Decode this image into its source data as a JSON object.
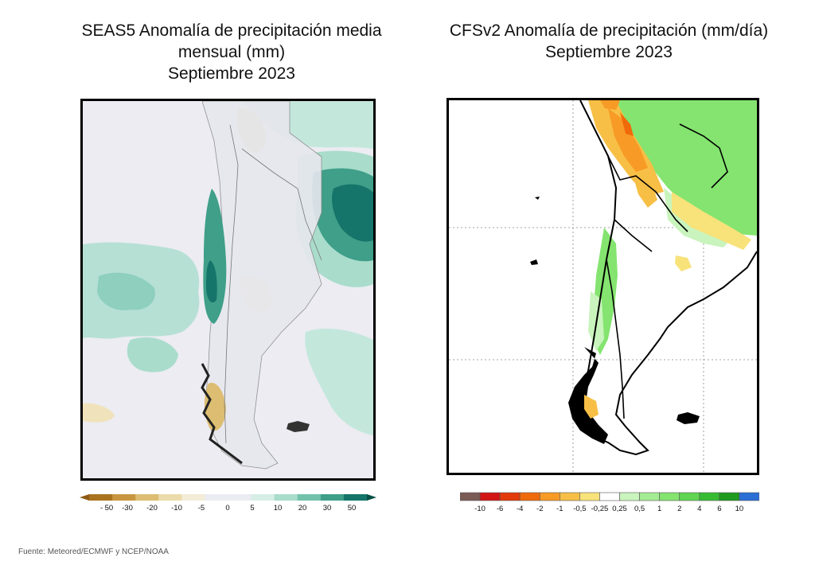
{
  "left_panel": {
    "title_lines": [
      "SEAS5 Anomalía de precipitación media",
      "mensual (mm)",
      "Septiembre 2023"
    ],
    "legend": {
      "colors": [
        "#8c5a14",
        "#a9731f",
        "#c8963e",
        "#dcbd72",
        "#ecdbaa",
        "#f3ecd6",
        "#ebebf2",
        "#ebebf2",
        "#d6eee6",
        "#a9dccb",
        "#72c2ab",
        "#3f9f89",
        "#15756a",
        "#044f44"
      ],
      "ticks": [
        "- 50",
        "-30",
        "-20",
        "-10",
        "-5",
        "0",
        "5",
        "10",
        "20",
        "30",
        "50"
      ]
    }
  },
  "right_panel": {
    "title_lines": [
      "CFSv2 Anomalía de precipitación (mm/día)",
      "Septiembre 2023"
    ],
    "legend": {
      "colors": [
        "#7a5a55",
        "#d21414",
        "#e23a0a",
        "#f06a0a",
        "#f79a26",
        "#f7bf45",
        "#f8e27a",
        "#ffffff",
        "#c9f4bd",
        "#a4ec93",
        "#84e46f",
        "#5fd552",
        "#38bb34",
        "#1e9a1e",
        "#2a6fd6"
      ],
      "ticks": [
        "-10",
        "-6",
        "-4",
        "-2",
        "-1",
        "-0,5",
        "-0,25",
        "0,25",
        "0,5",
        "1",
        "2",
        "4",
        "6",
        "10"
      ]
    }
  },
  "source": "Fuente: Meteored/ECMWF y NCEP/NOAA"
}
